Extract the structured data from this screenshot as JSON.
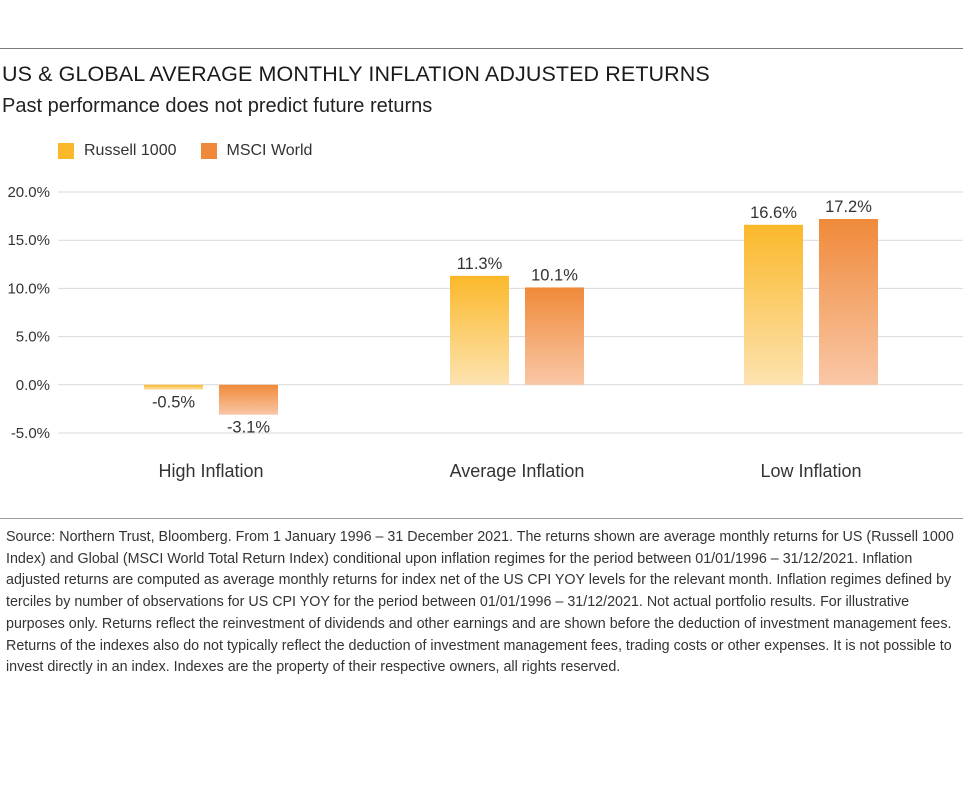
{
  "title": "US & GLOBAL AVERAGE MONTHLY INFLATION ADJUSTED RETURNS",
  "subtitle": "Past performance does not predict future returns",
  "colors": {
    "russell_top": "#fbb82a",
    "russell_bottom": "#fde3b0",
    "msci_top": "#f08a3a",
    "msci_bottom": "#f9c7a6",
    "grid": "#d9d9d9"
  },
  "chart_data": {
    "type": "bar",
    "categories": [
      "High Inflation",
      "Average Inflation",
      "Low Inflation"
    ],
    "series": [
      {
        "name": "Russell 1000",
        "values": [
          -0.5,
          11.3,
          16.6
        ],
        "labels": [
          "-0.5%",
          "11.3%",
          "16.6%"
        ]
      },
      {
        "name": "MSCI World",
        "values": [
          -3.1,
          10.1,
          17.2
        ],
        "labels": [
          "-3.1%",
          "10.1%",
          "17.2%"
        ]
      }
    ],
    "yticks": [
      20,
      15,
      10,
      5,
      0,
      -5
    ],
    "ytick_labels": [
      "20.0%",
      "15.0%",
      "10.0%",
      "5.0%",
      "0.0%",
      "-5.0%"
    ],
    "ylim": [
      -5,
      20
    ],
    "grid": true,
    "legend_position": "top-left"
  },
  "footnote": "Source: Northern Trust, Bloomberg. From 1 January 1996 – 31 December 2021. The returns shown are average monthly returns for US (Russell 1000 Index) and Global (MSCI World Total Return Index) conditional upon inflation regimes for the period between 01/01/1996 – 31/12/2021. Inflation adjusted returns are computed as average monthly returns for index net of the US CPI YOY levels for the relevant month. Inflation regimes defined by terciles by number of observations for US CPI YOY for the period between 01/01/1996 – 31/12/2021. Not actual portfolio results. For illustrative purposes only. Returns reflect the reinvestment of dividends and other earnings and are shown before the deduction of investment management fees. Returns of the indexes also do not typically reflect the deduction of investment management fees, trading costs or other expenses. It is not possible to invest directly in an index. Indexes are the property of their respective owners, all rights reserved."
}
